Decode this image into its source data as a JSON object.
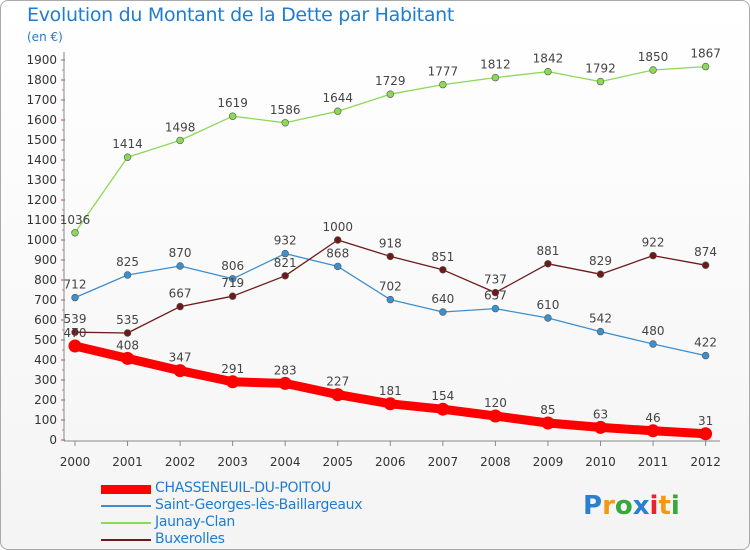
{
  "title": "Evolution du Montant de la Dette par Habitant",
  "unit_label": "(en €)",
  "logo_text": "Proxiti",
  "chart_data": {
    "type": "line",
    "title": "Evolution du Montant de la Dette par Habitant",
    "ylabel": "(en €)",
    "xlabel": "",
    "x": [
      "2000",
      "2001",
      "2002",
      "2003",
      "2004",
      "2005",
      "2006",
      "2007",
      "2008",
      "2009",
      "2010",
      "2011",
      "2012"
    ],
    "ylim": [
      0,
      1900
    ],
    "ytick_step": 100,
    "grid": false,
    "legend_position": "bottom-left",
    "series": [
      {
        "name": "CHASSENEUIL-DU-POITOU",
        "color": "#ff0000",
        "values": [
          470,
          408,
          347,
          291,
          283,
          227,
          181,
          154,
          120,
          85,
          63,
          46,
          31
        ]
      },
      {
        "name": "Saint-Georges-lès-Baillargeaux",
        "color": "#3d8fcd",
        "values": [
          712,
          825,
          870,
          806,
          932,
          868,
          702,
          640,
          657,
          610,
          542,
          480,
          422
        ]
      },
      {
        "name": "Jaunay-Clan",
        "color": "#8cd858",
        "values": [
          1036,
          1414,
          1498,
          1619,
          1586,
          1644,
          1729,
          1777,
          1812,
          1842,
          1792,
          1850,
          1867
        ]
      },
      {
        "name": "Buxerolles",
        "color": "#6e1a1a",
        "values": [
          539,
          535,
          667,
          719,
          821,
          1000,
          918,
          851,
          737,
          881,
          829,
          922,
          874
        ]
      }
    ]
  }
}
